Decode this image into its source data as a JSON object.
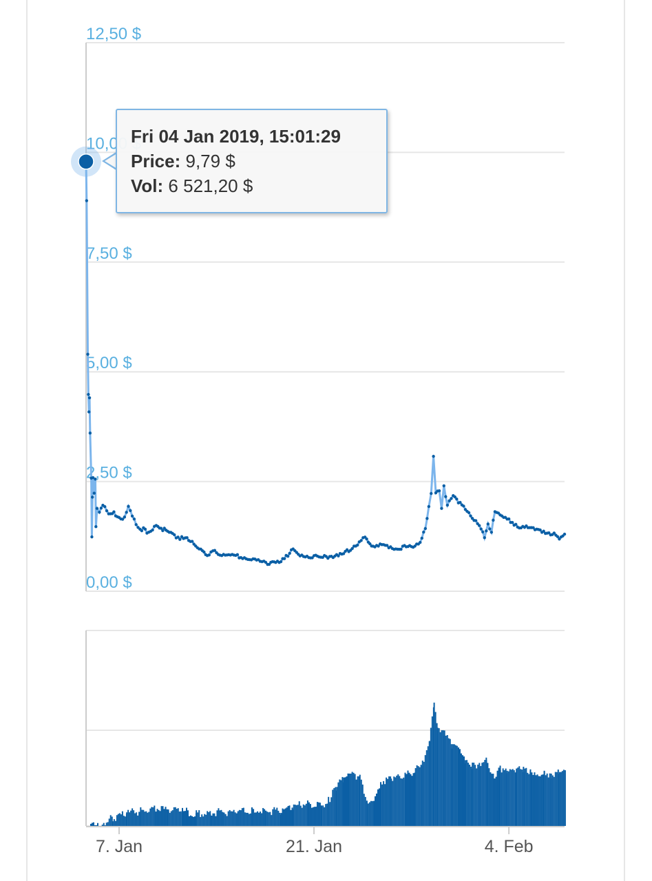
{
  "tooltip": {
    "title": "Fri 04 Jan 2019, 15:01:29",
    "price_label": "Price:",
    "price_value": "9,79 $",
    "vol_label": "Vol:",
    "vol_value": "6 521,20 $"
  },
  "chart_data": [
    {
      "type": "line",
      "title": "",
      "xlabel": "",
      "ylabel": "",
      "ylim": [
        0,
        12.5
      ],
      "y_ticks": [
        "0,00 $",
        "2,50 $",
        "5,00 $",
        "7,50 $",
        "10,00 $",
        "12,50 $"
      ],
      "y_tick_values": [
        0,
        2.5,
        5,
        7.5,
        10,
        12.5
      ],
      "x_ticks": [
        "7. Jan",
        "21. Jan",
        "4. Feb"
      ],
      "x_tick_dates": [
        "2019-01-07",
        "2019-01-21",
        "2019-02-04"
      ],
      "xlim": [
        "2019-01-04 15:01",
        "2019-02-08 00:00"
      ],
      "grid": true,
      "series": [
        {
          "name": "Price",
          "color": "#0b5fa5",
          "line_color": "#7cb5ec",
          "points": [
            [
              "2019-01-04 15:00",
              9.79
            ],
            [
              "2019-01-04 16:00",
              8.9
            ],
            [
              "2019-01-04 18:00",
              5.4
            ],
            [
              "2019-01-04 19:00",
              4.5
            ],
            [
              "2019-01-04 20:00",
              4.1
            ],
            [
              "2019-01-04 21:00",
              4.4
            ],
            [
              "2019-01-04 22:00",
              3.6
            ],
            [
              "2019-01-05 00:00",
              2.6
            ],
            [
              "2019-01-05 01:00",
              1.2
            ],
            [
              "2019-01-05 02:00",
              2.1
            ],
            [
              "2019-01-05 03:00",
              2.6
            ],
            [
              "2019-01-05 05:00",
              2.2
            ],
            [
              "2019-01-05 07:00",
              2.6
            ],
            [
              "2019-01-05 08:00",
              1.5
            ],
            [
              "2019-01-05 10:00",
              1.9
            ],
            [
              "2019-01-05 14:00",
              1.8
            ],
            [
              "2019-01-05 20:00",
              1.95
            ],
            [
              "2019-01-06 06:00",
              1.8
            ],
            [
              "2019-01-06 18:00",
              1.75
            ],
            [
              "2019-01-07 06:00",
              1.65
            ],
            [
              "2019-01-07 16:00",
              1.9
            ],
            [
              "2019-01-08 02:00",
              1.6
            ],
            [
              "2019-01-08 12:00",
              1.45
            ],
            [
              "2019-01-09 00:00",
              1.35
            ],
            [
              "2019-01-09 16:00",
              1.5
            ],
            [
              "2019-01-10 06:00",
              1.4
            ],
            [
              "2019-01-10 20:00",
              1.3
            ],
            [
              "2019-01-11 12:00",
              1.2
            ],
            [
              "2019-01-12 06:00",
              1.15
            ],
            [
              "2019-01-12 18:00",
              1.0
            ],
            [
              "2019-01-13 08:00",
              0.85
            ],
            [
              "2019-01-14 00:00",
              0.9
            ],
            [
              "2019-01-14 18:00",
              0.8
            ],
            [
              "2019-01-15 12:00",
              0.8
            ],
            [
              "2019-01-16 06:00",
              0.75
            ],
            [
              "2019-01-17 00:00",
              0.7
            ],
            [
              "2019-01-17 16:00",
              0.6
            ],
            [
              "2019-01-18 06:00",
              0.65
            ],
            [
              "2019-01-18 18:00",
              0.7
            ],
            [
              "2019-01-19 06:00",
              0.85
            ],
            [
              "2019-01-19 12:00",
              1.0
            ],
            [
              "2019-01-20 00:00",
              0.85
            ],
            [
              "2019-01-20 18:00",
              0.8
            ],
            [
              "2019-01-21 12:00",
              0.75
            ],
            [
              "2019-01-22 06:00",
              0.8
            ],
            [
              "2019-01-22 18:00",
              0.85
            ],
            [
              "2019-01-23 06:00",
              0.9
            ],
            [
              "2019-01-23 18:00",
              0.95
            ],
            [
              "2019-01-24 06:00",
              1.1
            ],
            [
              "2019-01-24 16:00",
              1.25
            ],
            [
              "2019-01-25 06:00",
              1.0
            ],
            [
              "2019-01-26 00:00",
              1.05
            ],
            [
              "2019-01-26 18:00",
              1.0
            ],
            [
              "2019-01-27 12:00",
              1.0
            ],
            [
              "2019-01-28 06:00",
              1.0
            ],
            [
              "2019-01-28 18:00",
              1.2
            ],
            [
              "2019-01-29 00:00",
              1.45
            ],
            [
              "2019-01-29 06:00",
              1.9
            ],
            [
              "2019-01-29 10:00",
              2.2
            ],
            [
              "2019-01-29 14:00",
              3.05
            ],
            [
              "2019-01-29 18:00",
              2.2
            ],
            [
              "2019-01-30 00:00",
              2.3
            ],
            [
              "2019-01-30 04:00",
              1.9
            ],
            [
              "2019-01-30 08:00",
              2.4
            ],
            [
              "2019-01-30 14:00",
              2.0
            ],
            [
              "2019-01-31 00:00",
              2.15
            ],
            [
              "2019-01-31 12:00",
              2.0
            ],
            [
              "2019-02-01 00:00",
              1.8
            ],
            [
              "2019-02-01 12:00",
              1.6
            ],
            [
              "2019-02-02 00:00",
              1.45
            ],
            [
              "2019-02-02 06:00",
              1.2
            ],
            [
              "2019-02-02 12:00",
              1.55
            ],
            [
              "2019-02-02 18:00",
              1.3
            ],
            [
              "2019-02-03 00:00",
              1.85
            ],
            [
              "2019-02-03 12:00",
              1.75
            ],
            [
              "2019-02-04 00:00",
              1.65
            ],
            [
              "2019-02-04 12:00",
              1.5
            ],
            [
              "2019-02-05 00:00",
              1.45
            ],
            [
              "2019-02-05 18:00",
              1.45
            ],
            [
              "2019-02-06 06:00",
              1.4
            ],
            [
              "2019-02-06 18:00",
              1.35
            ],
            [
              "2019-02-07 06:00",
              1.3
            ],
            [
              "2019-02-07 12:00",
              1.25
            ],
            [
              "2019-02-07 18:00",
              1.2
            ],
            [
              "2019-02-08 00:00",
              1.3
            ]
          ]
        }
      ]
    },
    {
      "type": "area",
      "title": "",
      "xlabel": "",
      "ylabel": "",
      "grid": true,
      "series": [
        {
          "name": "Vol",
          "color": "#0b5fa5",
          "points": [
            [
              "2019-01-04 15:00",
              0
            ],
            [
              "2019-01-05 10:00",
              0
            ],
            [
              "2019-01-05 18:00",
              3
            ],
            [
              "2019-01-06 12:00",
              6
            ],
            [
              "2019-01-07 12:00",
              10
            ],
            [
              "2019-01-08 12:00",
              12
            ],
            [
              "2019-01-09 12:00",
              15
            ],
            [
              "2019-01-10 12:00",
              12
            ],
            [
              "2019-01-11 12:00",
              12
            ],
            [
              "2019-01-12 12:00",
              10
            ],
            [
              "2019-01-13 12:00",
              11
            ],
            [
              "2019-01-14 12:00",
              11
            ],
            [
              "2019-01-15 12:00",
              11
            ],
            [
              "2019-01-16 12:00",
              12
            ],
            [
              "2019-01-17 12:00",
              12
            ],
            [
              "2019-01-18 12:00",
              12
            ],
            [
              "2019-01-19 12:00",
              16
            ],
            [
              "2019-01-20 12:00",
              18
            ],
            [
              "2019-01-21 12:00",
              16
            ],
            [
              "2019-01-22 00:00",
              20
            ],
            [
              "2019-01-22 12:00",
              30
            ],
            [
              "2019-01-23 00:00",
              38
            ],
            [
              "2019-01-23 12:00",
              40
            ],
            [
              "2019-01-24 06:00",
              40
            ],
            [
              "2019-01-24 18:00",
              20
            ],
            [
              "2019-01-25 06:00",
              22
            ],
            [
              "2019-01-25 18:00",
              35
            ],
            [
              "2019-01-26 12:00",
              38
            ],
            [
              "2019-01-27 12:00",
              40
            ],
            [
              "2019-01-28 06:00",
              45
            ],
            [
              "2019-01-28 18:00",
              50
            ],
            [
              "2019-01-29 06:00",
              70
            ],
            [
              "2019-01-29 14:00",
              100
            ],
            [
              "2019-01-29 20:00",
              80
            ],
            [
              "2019-01-30 08:00",
              75
            ],
            [
              "2019-01-30 20:00",
              65
            ],
            [
              "2019-01-31 08:00",
              60
            ],
            [
              "2019-01-31 20:00",
              52
            ],
            [
              "2019-02-01 08:00",
              48
            ],
            [
              "2019-02-01 20:00",
              50
            ],
            [
              "2019-02-02 08:00",
              55
            ],
            [
              "2019-02-02 20:00",
              40
            ],
            [
              "2019-02-03 08:00",
              45
            ],
            [
              "2019-02-03 20:00",
              43
            ],
            [
              "2019-02-04 12:00",
              44
            ],
            [
              "2019-02-05 00:00",
              46
            ],
            [
              "2019-02-05 12:00",
              44
            ],
            [
              "2019-02-06 00:00",
              42
            ],
            [
              "2019-02-06 12:00",
              44
            ],
            [
              "2019-02-07 00:00",
              40
            ],
            [
              "2019-02-07 12:00",
              43
            ],
            [
              "2019-02-08 00:00",
              42
            ]
          ]
        }
      ]
    }
  ]
}
